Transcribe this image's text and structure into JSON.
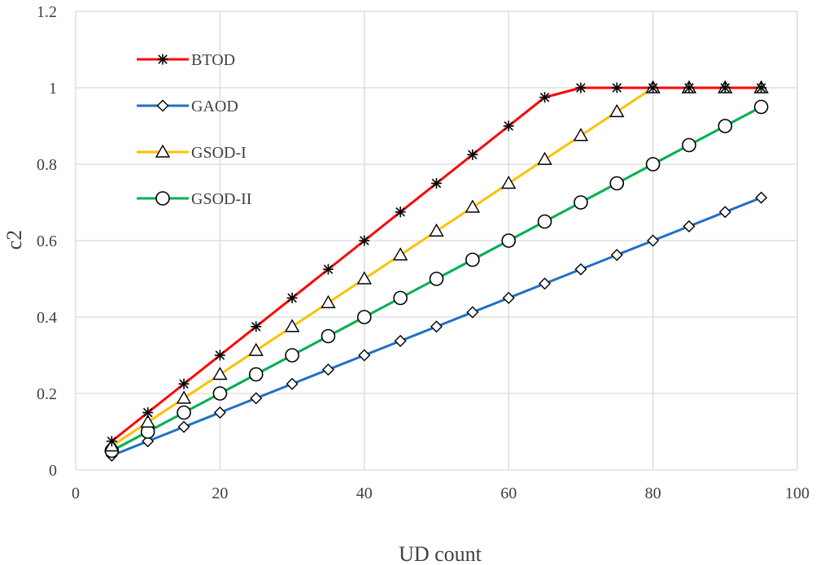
{
  "chart_data": {
    "type": "line",
    "title": "",
    "xlabel": "UD count",
    "ylabel": "c2",
    "xlim": [
      0,
      100
    ],
    "ylim": [
      0,
      1.2
    ],
    "xticks": [
      0,
      20,
      40,
      60,
      80,
      100
    ],
    "yticks": [
      0,
      0.2,
      0.4,
      0.6,
      0.8,
      1,
      1.2
    ],
    "xtick_labels": [
      "0",
      "20",
      "40",
      "60",
      "80",
      "100"
    ],
    "ytick_labels": [
      "0",
      "0.2",
      "0.4",
      "0.6",
      "0.8",
      "1",
      "1.2"
    ],
    "grid": true,
    "legend_position": "top-left",
    "x": [
      5,
      10,
      15,
      20,
      25,
      30,
      35,
      40,
      45,
      50,
      55,
      60,
      65,
      70,
      75,
      80,
      85,
      90,
      95
    ],
    "series": [
      {
        "name": "BTOD",
        "color": "#ff0000",
        "marker": "asterisk",
        "values": [
          0.075,
          0.15,
          0.225,
          0.3,
          0.375,
          0.45,
          0.525,
          0.6,
          0.675,
          0.75,
          0.825,
          0.9,
          0.975,
          1,
          1,
          1,
          1,
          1,
          1
        ]
      },
      {
        "name": "GAOD",
        "color": "#1f6fc5",
        "marker": "diamond",
        "values": [
          0.0375,
          0.075,
          0.1125,
          0.15,
          0.1875,
          0.225,
          0.2625,
          0.3,
          0.3375,
          0.375,
          0.4125,
          0.45,
          0.4875,
          0.525,
          0.5625,
          0.6,
          0.6375,
          0.675,
          0.7125
        ]
      },
      {
        "name": "GSOD-I",
        "color": "#ffc000",
        "marker": "triangle",
        "values": [
          0.0625,
          0.125,
          0.1875,
          0.25,
          0.3125,
          0.375,
          0.4375,
          0.5,
          0.5625,
          0.625,
          0.6875,
          0.75,
          0.8125,
          0.875,
          0.9375,
          1,
          1,
          1,
          1
        ]
      },
      {
        "name": "GSOD-II",
        "color": "#00b050",
        "marker": "circle",
        "values": [
          0.05,
          0.1,
          0.15,
          0.2,
          0.25,
          0.3,
          0.35,
          0.4,
          0.45,
          0.5,
          0.55,
          0.6,
          0.65,
          0.7,
          0.75,
          0.8,
          0.85,
          0.9,
          0.95
        ]
      }
    ]
  }
}
